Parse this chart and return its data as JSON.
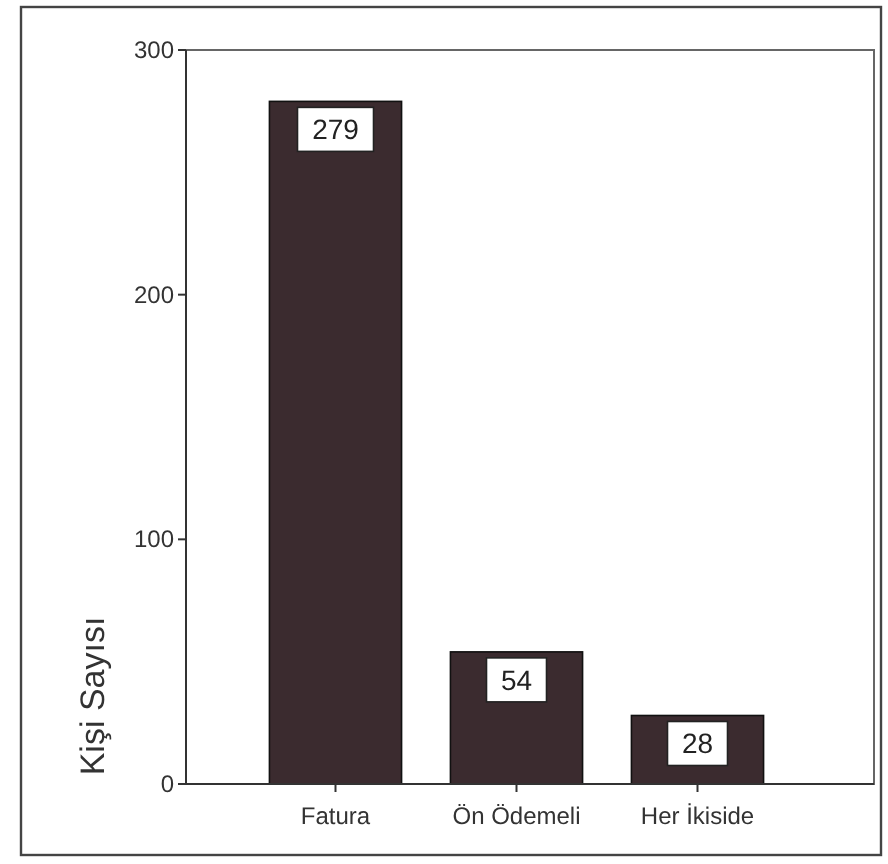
{
  "chart_data": {
    "type": "bar",
    "categories": [
      "Fatura",
      "Ön Ödemeli",
      "Her İkiside"
    ],
    "values": [
      279,
      54,
      28
    ],
    "color": "#3b2b2f",
    "ylabel": "Kişi Sayısı",
    "ylim": [
      0,
      300
    ],
    "yticks": [
      0,
      100,
      200,
      300
    ],
    "data_labels": true
  }
}
